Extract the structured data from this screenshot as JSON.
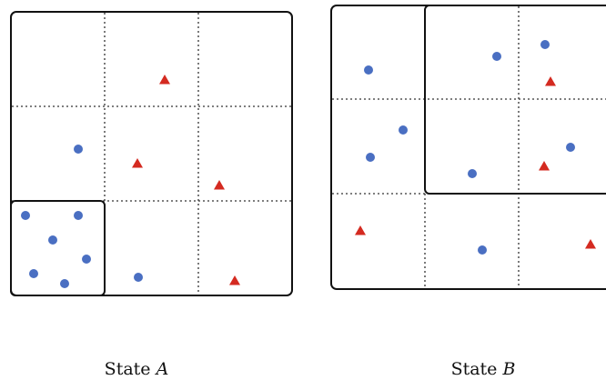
{
  "colors": {
    "frame": "#111111",
    "grid": "#333333",
    "circle": "#4a6fc2",
    "triangle": "#d42a20"
  },
  "panels": [
    {
      "id": "state-a",
      "caption_text": "State ",
      "caption_var": "A",
      "circles": [
        [
          86,
          164
        ],
        [
          28,
          237
        ],
        [
          86,
          237
        ],
        [
          58,
          264
        ],
        [
          95,
          285
        ],
        [
          37,
          301
        ],
        [
          71,
          312
        ],
        [
          152,
          305
        ]
      ],
      "triangles": [
        [
          181,
          88
        ],
        [
          151,
          180
        ],
        [
          241,
          204
        ],
        [
          258,
          309
        ]
      ]
    },
    {
      "id": "state-b",
      "caption_text": "State ",
      "caption_var": "B",
      "circles": [
        [
          405,
          77
        ],
        [
          546,
          62
        ],
        [
          599,
          49
        ],
        [
          443,
          143
        ],
        [
          407,
          173
        ],
        [
          519,
          191
        ],
        [
          627,
          162
        ],
        [
          530,
          275
        ]
      ],
      "triangles": [
        [
          605,
          90
        ],
        [
          598,
          183
        ],
        [
          396,
          254
        ],
        [
          649,
          269
        ]
      ]
    }
  ]
}
